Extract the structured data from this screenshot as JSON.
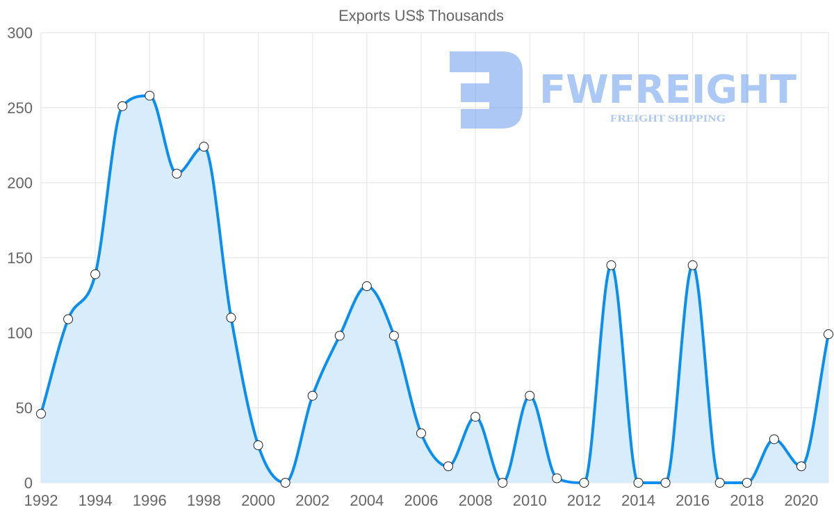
{
  "watermark": {
    "brand": "FWFREIGHT",
    "tagline": "FREIGHT SHIPPING"
  },
  "chart_data": {
    "type": "line",
    "title": "Exports US$ Thousands",
    "xlabel": "",
    "ylabel": "",
    "x": [
      1992,
      1993,
      1994,
      1995,
      1996,
      1997,
      1998,
      1999,
      2000,
      2001,
      2002,
      2003,
      2004,
      2005,
      2006,
      2007,
      2008,
      2009,
      2010,
      2011,
      2012,
      2013,
      2014,
      2015,
      2016,
      2017,
      2018,
      2019,
      2020,
      2021
    ],
    "series": [
      {
        "name": "Exports US$ Thousands",
        "values": [
          46,
          109,
          139,
          251,
          258,
          206,
          224,
          110,
          25,
          0,
          58,
          98,
          131,
          98,
          33,
          11,
          44,
          0,
          58,
          3,
          0,
          145,
          0,
          0,
          145,
          0,
          0,
          29,
          11,
          99
        ],
        "color": "#0a8ef0",
        "fill": "#d9ecfc"
      }
    ],
    "xticks": [
      "1992",
      "1994",
      "1996",
      "1998",
      "2000",
      "2002",
      "2004",
      "2006",
      "2008",
      "2010",
      "2012",
      "2014",
      "2016",
      "2018",
      "2020"
    ],
    "yticks": [
      "0",
      "50",
      "100",
      "150",
      "200",
      "250",
      "300"
    ],
    "ylim": [
      0,
      300
    ],
    "xlim": [
      1992,
      2021
    ],
    "grid": true,
    "legend": "none"
  }
}
